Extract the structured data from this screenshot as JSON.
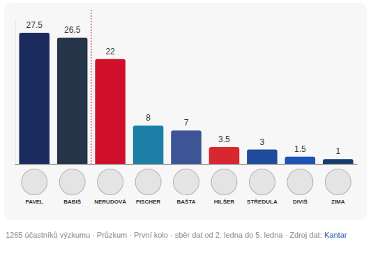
{
  "chart_data": {
    "type": "bar",
    "categories": [
      "PAVEL",
      "BABIŠ",
      "NERUDOVÁ",
      "FISCHER",
      "BAŠTA",
      "HILŠER",
      "STŘEDULA",
      "DIVIŠ",
      "ZIMA"
    ],
    "values": [
      27.5,
      26.5,
      22,
      8,
      7,
      3.5,
      3,
      1.5,
      1
    ],
    "colors": [
      "#1c2b5e",
      "#26344a",
      "#d0102b",
      "#1b7fa6",
      "#3d5496",
      "#d8272e",
      "#1f4c9a",
      "#1b54b6",
      "#163b6e"
    ],
    "ylim": [
      0,
      30
    ],
    "grid": false,
    "data_labels": true,
    "tick_labels": "x",
    "annotations": [
      "1265 účastníků výzkumu · Průzkum · První kolo · sběr dat od 2. ledna do 5. ledna · Zdroj dat:",
      "Kantar"
    ]
  }
}
